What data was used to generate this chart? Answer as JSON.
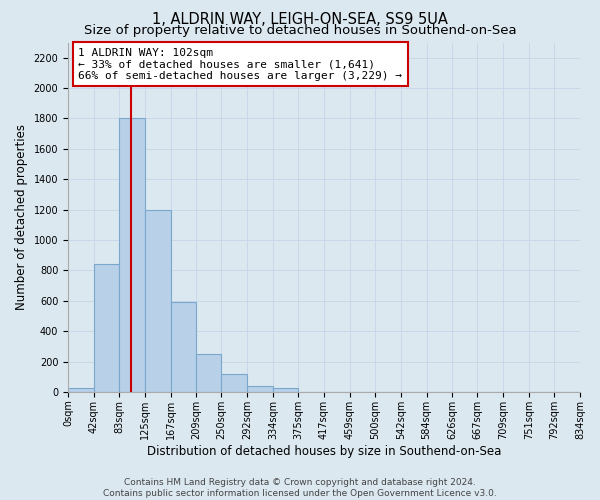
{
  "title": "1, ALDRIN WAY, LEIGH-ON-SEA, SS9 5UA",
  "subtitle": "Size of property relative to detached houses in Southend-on-Sea",
  "xlabel": "Distribution of detached houses by size in Southend-on-Sea",
  "ylabel": "Number of detached properties",
  "footer_line1": "Contains HM Land Registry data © Crown copyright and database right 2024.",
  "footer_line2": "Contains public sector information licensed under the Open Government Licence v3.0.",
  "bar_edges": [
    0,
    42,
    83,
    125,
    167,
    209,
    250,
    292,
    334,
    375,
    417,
    459,
    500,
    542,
    584,
    626,
    667,
    709,
    751,
    792,
    834
  ],
  "bar_heights": [
    25,
    840,
    1800,
    1200,
    590,
    250,
    120,
    40,
    25,
    0,
    0,
    0,
    0,
    0,
    0,
    0,
    0,
    0,
    0,
    0
  ],
  "bar_color": "#b8d0e8",
  "bar_edgecolor": "#7aa8cc",
  "vline_x": 102,
  "vline_color": "#cc0000",
  "annotation_line1": "1 ALDRIN WAY: 102sqm",
  "annotation_line2": "← 33% of detached houses are smaller (1,641)",
  "annotation_line3": "66% of semi-detached houses are larger (3,229) →",
  "annotation_box_color": "#ffffff",
  "annotation_box_edgecolor": "#cc0000",
  "ylim": [
    0,
    2300
  ],
  "xlim": [
    0,
    834
  ],
  "yticks": [
    0,
    200,
    400,
    600,
    800,
    1000,
    1200,
    1400,
    1600,
    1800,
    2000,
    2200
  ],
  "xtick_labels": [
    "0sqm",
    "42sqm",
    "83sqm",
    "125sqm",
    "167sqm",
    "209sqm",
    "250sqm",
    "292sqm",
    "334sqm",
    "375sqm",
    "417sqm",
    "459sqm",
    "500sqm",
    "542sqm",
    "584sqm",
    "626sqm",
    "667sqm",
    "709sqm",
    "751sqm",
    "792sqm",
    "834sqm"
  ],
  "xtick_positions": [
    0,
    42,
    83,
    125,
    167,
    209,
    250,
    292,
    334,
    375,
    417,
    459,
    500,
    542,
    584,
    626,
    667,
    709,
    751,
    792,
    834
  ],
  "grid_color": "#c8d8e8",
  "background_color": "#dce8f0",
  "title_fontsize": 10.5,
  "subtitle_fontsize": 9.5,
  "axis_label_fontsize": 8.5,
  "tick_fontsize": 7,
  "footer_fontsize": 6.5,
  "annot_fontsize": 8
}
